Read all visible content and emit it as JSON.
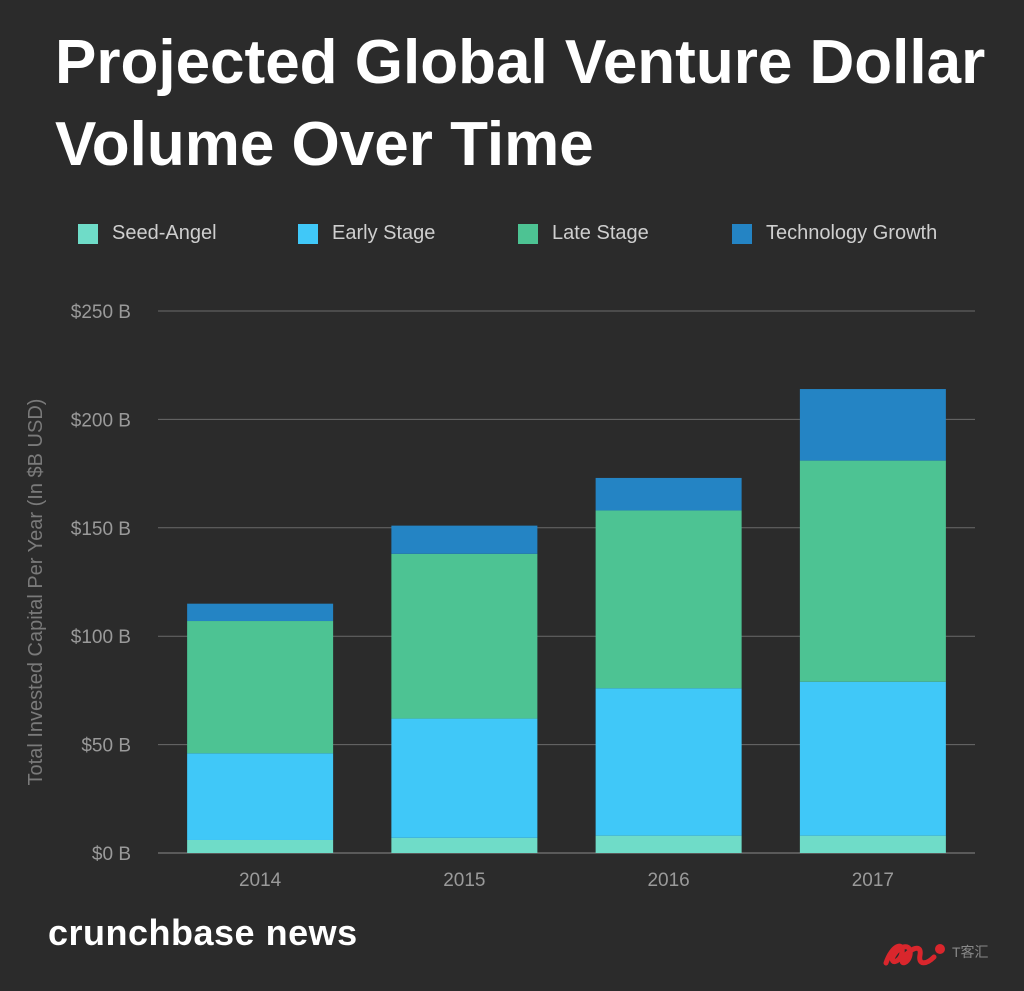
{
  "title": "Projected Global Venture Dollar Volume Over Time",
  "brand": "crunchbase news",
  "watermark_text": "T客汇",
  "colors": {
    "background": "#2b2b2b",
    "grid": "#6b6b6b",
    "axis_text": "#9a9a9a"
  },
  "chart_data": {
    "type": "bar",
    "stacked": true,
    "categories": [
      "2014",
      "2015",
      "2016",
      "2017"
    ],
    "series": [
      {
        "name": "Seed-Angel",
        "color": "#6fdcc8",
        "values": [
          6,
          7,
          8,
          8
        ]
      },
      {
        "name": "Early Stage",
        "color": "#40c8f8",
        "values": [
          40,
          55,
          68,
          71
        ]
      },
      {
        "name": "Late Stage",
        "color": "#4dc393",
        "values": [
          61,
          76,
          82,
          102
        ]
      },
      {
        "name": "Technology Growth",
        "color": "#2484c4",
        "values": [
          8,
          13,
          15,
          33
        ]
      }
    ],
    "ylabel": "Total Invested Capital Per Year (In $B USD)",
    "xlabel": "",
    "ylim": [
      0,
      250
    ],
    "yticks": [
      0,
      50,
      100,
      150,
      200,
      250
    ],
    "ytick_labels": [
      "$0 B",
      "$50 B",
      "$100 B",
      "$150 B",
      "$200 B",
      "$250 B"
    ],
    "grid": true,
    "legend_position": "top"
  }
}
